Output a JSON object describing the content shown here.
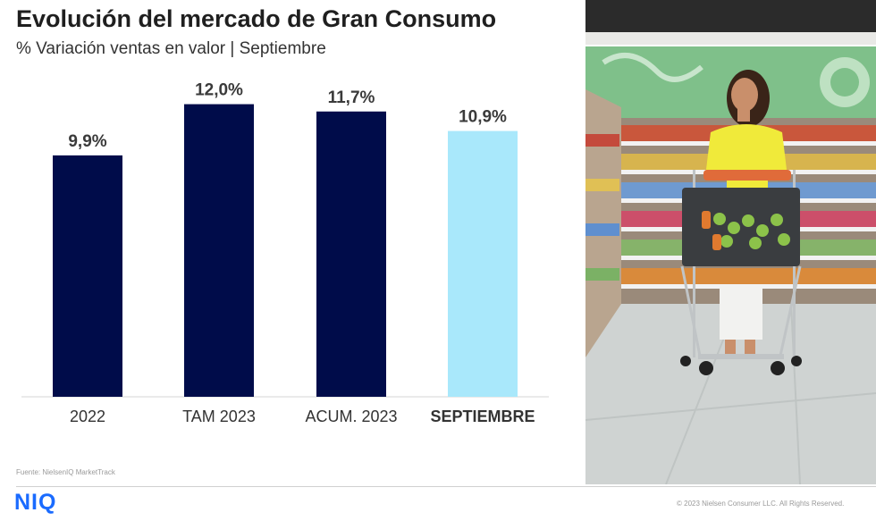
{
  "title": "Evolución del mercado de Gran Consumo",
  "subtitle": "% Variación ventas en valor | Septiembre",
  "source": "Fuente: NielsenIQ MarketTrack",
  "logo": "NIQ",
  "copyright": "© 2023 Nielsen Consumer LLC. All Rights Reserved.",
  "colors": {
    "bar": "#000c4a",
    "highlight_bar": "#a9e8fb",
    "brand": "#1a6bff"
  },
  "chart_data": {
    "type": "bar",
    "categories": [
      "2022",
      "TAM 2023",
      "ACUM. 2023",
      "SEPTIEMBRE"
    ],
    "values": [
      9.9,
      12.0,
      11.7,
      10.9
    ],
    "data_labels": [
      "9,9%",
      "12,0%",
      "11,7%",
      "10,9%"
    ],
    "highlight_index": 3,
    "ylim": [
      0,
      14
    ],
    "grid": false,
    "axes_visible": false
  }
}
